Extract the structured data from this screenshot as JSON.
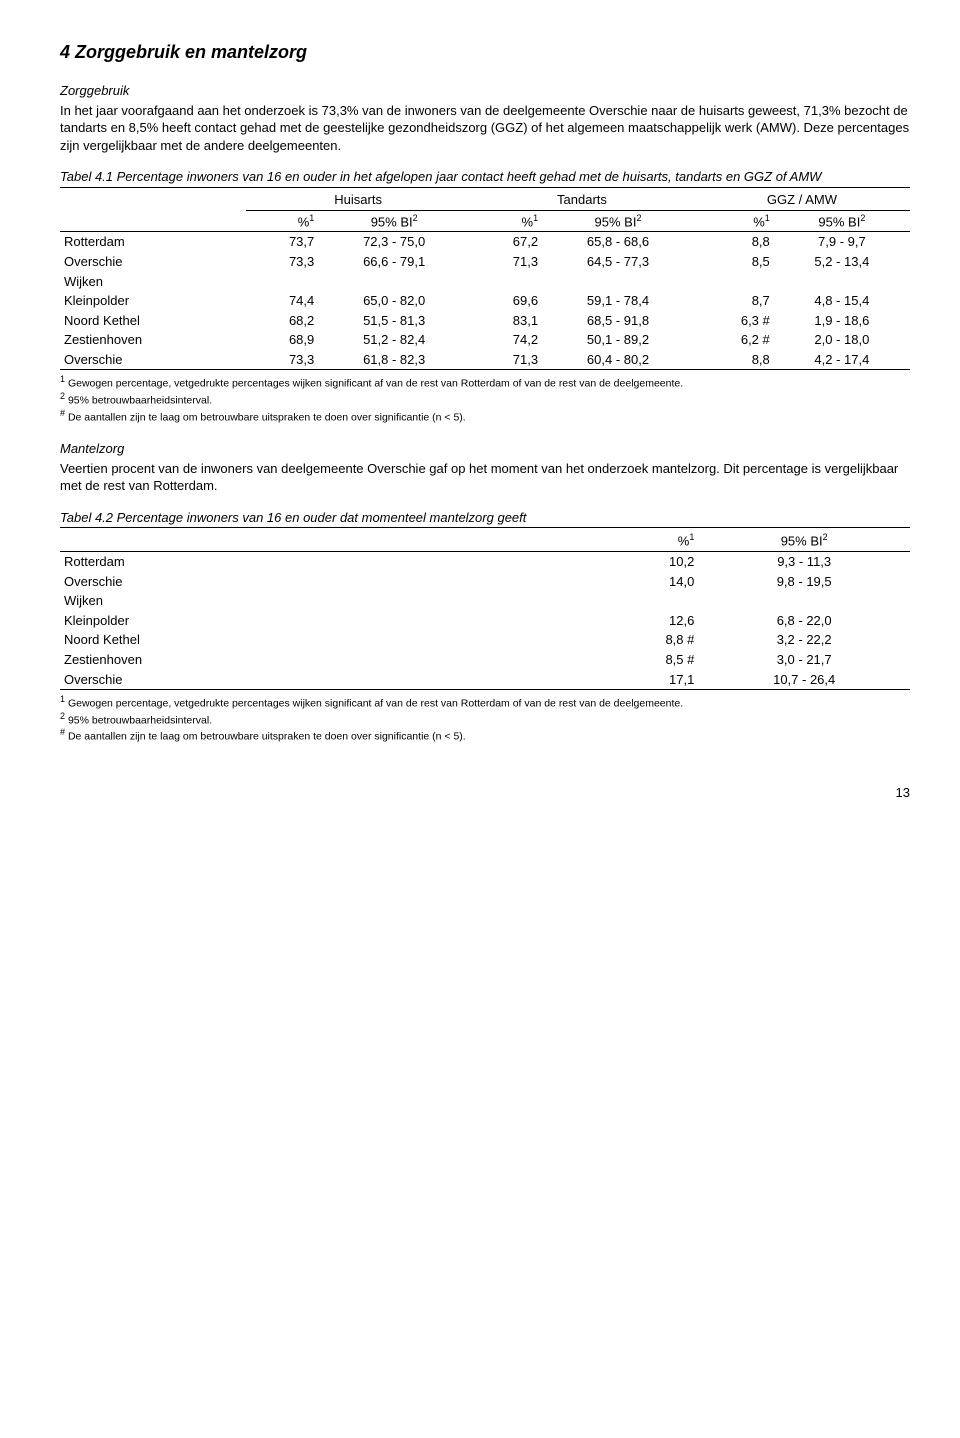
{
  "page": {
    "title": "4 Zorggebruik en mantelzorg",
    "number": "13"
  },
  "section1": {
    "heading": "Zorggebruik",
    "para": "In het jaar voorafgaand aan het onderzoek is 73,3% van de inwoners van de deelgemeente Overschie naar de huisarts geweest, 71,3% bezocht de tandarts en 8,5% heeft contact gehad met de geestelijke gezondheidszorg (GGZ) of het algemeen maatschappelijk werk (AMW). Deze percentages zijn vergelijkbaar met de andere deelgemeenten."
  },
  "table1": {
    "caption": "Tabel 4.1 Percentage inwoners van 16 en ouder in het afgelopen jaar contact heeft gehad met de huisarts, tandarts en GGZ of AMW",
    "groups": [
      "Huisarts",
      "Tandarts",
      "GGZ / AMW"
    ],
    "colhead_pct": "%",
    "colhead_ci": "95% BI",
    "sup1": "1",
    "sup2": "2",
    "rows": [
      {
        "label": "Rotterdam",
        "p1": "73,7",
        "c1": "72,3  -  75,0",
        "p2": "67,2",
        "c2": "65,8  - 68,6",
        "p3": "8,8",
        "c3": "7,9  -   9,7"
      },
      {
        "label": "Overschie",
        "p1": "73,3",
        "c1": "66,6  -  79,1",
        "p2": "71,3",
        "c2": "64,5  - 77,3",
        "p3": "8,5",
        "c3": "5,2  - 13,4"
      }
    ],
    "wijken_label": "Wijken",
    "wijken": [
      {
        "label": "Kleinpolder",
        "p1": "74,4",
        "c1": "65,0  -  82,0",
        "p2": "69,6",
        "c2": "59,1  - 78,4",
        "p3": "8,7",
        "c3": "4,8  - 15,4",
        "hash": ""
      },
      {
        "label": "Noord Kethel",
        "p1": "68,2",
        "c1": "51,5  -  81,3",
        "p2": "83,1",
        "c2": "68,5  - 91,8",
        "p3": "6,3",
        "c3": "1,9  - 18,6",
        "hash": " #"
      },
      {
        "label": "Zestienhoven",
        "p1": "68,9",
        "c1": "51,2  -  82,4",
        "p2": "74,2",
        "c2": "50,1  - 89,2",
        "p3": "6,2",
        "c3": "2,0  - 18,0",
        "hash": " #"
      },
      {
        "label": "Overschie",
        "p1": "73,3",
        "c1": "61,8  -  82,3",
        "p2": "71,3",
        "c2": "60,4  - 80,2",
        "p3": "8,8",
        "c3": "4,2  - 17,4",
        "hash": ""
      }
    ]
  },
  "footnotes": {
    "f1_sup": "1",
    "f1": "Gewogen percentage, vetgedrukte percentages wijken significant af van de rest van Rotterdam of van de rest van de deelgemeente.",
    "f2_sup": "2",
    "f2": "95% betrouwbaarheidsinterval.",
    "f3_sup": "#",
    "f3": "De aantallen zijn te laag om betrouwbare uitspraken te doen over significantie (n < 5)."
  },
  "section2": {
    "heading": "Mantelzorg",
    "para": "Veertien procent van de inwoners van deelgemeente Overschie gaf op het moment van het onderzoek mantelzorg. Dit percentage is vergelijkbaar met de rest van Rotterdam."
  },
  "table2": {
    "caption": "Tabel 4.2 Percentage inwoners van 16 en ouder dat momenteel mantelzorg geeft",
    "colhead_pct": "%",
    "colhead_ci": "95% BI",
    "sup1": "1",
    "sup2": "2",
    "rows": [
      {
        "label": "Rotterdam",
        "p": "10,2",
        "c": "9,3  - 11,3",
        "hash": ""
      },
      {
        "label": "Overschie",
        "p": "14,0",
        "c": "9,8  - 19,5",
        "hash": ""
      }
    ],
    "wijken_label": "Wijken",
    "wijken": [
      {
        "label": "Kleinpolder",
        "p": "12,6",
        "c": "6,8  - 22,0",
        "hash": ""
      },
      {
        "label": "Noord Kethel",
        "p": "8,8",
        "c": "3,2  - 22,2",
        "hash": " #"
      },
      {
        "label": "Zestienhoven",
        "p": "8,5",
        "c": "3,0  - 21,7",
        "hash": " #"
      },
      {
        "label": "Overschie",
        "p": "17,1",
        "c": "10,7  - 26,4",
        "hash": ""
      }
    ]
  }
}
